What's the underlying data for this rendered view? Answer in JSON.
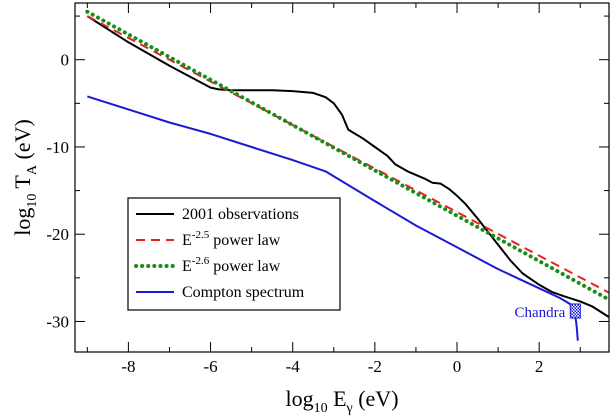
{
  "chart_data": {
    "type": "line",
    "title": "",
    "xlabel": {
      "main": "log",
      "sub": "10",
      "var": " E",
      "var_sub": "γ",
      "unit": " (eV)"
    },
    "ylabel": {
      "main": "log",
      "sub": "10",
      "var": " T",
      "var_sub": "A",
      "unit": " (eV)"
    },
    "xlim": [
      -9.3,
      3.7
    ],
    "ylim": [
      -33.5,
      6.5
    ],
    "xticks": [
      -8,
      -6,
      -4,
      -2,
      0,
      2
    ],
    "yticks": [
      0,
      -10,
      -20,
      -30
    ],
    "xtick_labels": [
      "-8",
      "-6",
      "-4",
      "-2",
      "0",
      "2"
    ],
    "ytick_labels": [
      "0",
      "-10",
      "-20",
      "-30"
    ],
    "grid": false,
    "legend_position": "center-left",
    "series": [
      {
        "name": "2001 observations",
        "legend_text": "2001 observations",
        "color": "#000000",
        "style": "solid",
        "x": [
          -9.0,
          -8.0,
          -7.0,
          -6.0,
          -5.8,
          -5.5,
          -5.0,
          -4.5,
          -4.0,
          -3.5,
          -3.2,
          -3.0,
          -2.8,
          -2.65,
          -2.55,
          -2.3,
          -2.0,
          -1.7,
          -1.5,
          -1.2,
          -1.0,
          -0.8,
          -0.6,
          -0.4,
          -0.2,
          0.0,
          0.2,
          0.5,
          0.8,
          1.0,
          1.3,
          1.6,
          2.0,
          2.3,
          2.6,
          3.0,
          3.3,
          3.7
        ],
        "y": [
          5.0,
          2.0,
          -0.7,
          -3.2,
          -3.4,
          -3.5,
          -3.5,
          -3.5,
          -3.6,
          -3.8,
          -4.3,
          -5.0,
          -6.3,
          -8.0,
          -8.3,
          -9.0,
          -10.0,
          -11.0,
          -12.0,
          -12.8,
          -13.2,
          -13.6,
          -14.1,
          -14.2,
          -14.8,
          -15.6,
          -16.5,
          -18.2,
          -20.0,
          -21.2,
          -23.0,
          -24.5,
          -25.8,
          -26.6,
          -27.1,
          -27.7,
          -28.3,
          -29.5
        ]
      },
      {
        "name": "E-2.5 power law",
        "legend_base": "E",
        "legend_sup": "-2.5",
        "legend_rest": " power law",
        "color": "#e8231f",
        "style": "dashed",
        "x": [
          -9.0,
          3.7
        ],
        "y": [
          5.0,
          -26.7
        ]
      },
      {
        "name": "E-2.6 power law",
        "legend_base": "E",
        "legend_sup": "-2.6",
        "legend_rest": " power law",
        "color": "#1a8c1a",
        "style": "dotted",
        "x": [
          -9.0,
          3.7
        ],
        "y": [
          5.5,
          -27.5
        ]
      },
      {
        "name": "Compton spectrum",
        "legend_text": "Compton spectrum",
        "color": "#1a1ad6",
        "style": "solid",
        "x": [
          -9.0,
          -8.0,
          -7.0,
          -6.0,
          -5.0,
          -4.0,
          -3.2,
          -2.0,
          -1.0,
          0.0,
          1.0,
          2.0,
          2.5,
          2.75,
          2.85,
          2.9,
          2.92,
          2.94
        ],
        "y": [
          -4.2,
          -5.7,
          -7.2,
          -8.5,
          -10.0,
          -11.5,
          -12.8,
          -16.2,
          -19.0,
          -21.5,
          -24.0,
          -26.2,
          -27.3,
          -28.0,
          -28.8,
          -30.0,
          -31.0,
          -32.2
        ]
      }
    ],
    "annotations": [
      {
        "text": "Chandra",
        "color": "#1a1ad6",
        "marker_x": 2.88,
        "marker_y": -28.8
      }
    ]
  }
}
